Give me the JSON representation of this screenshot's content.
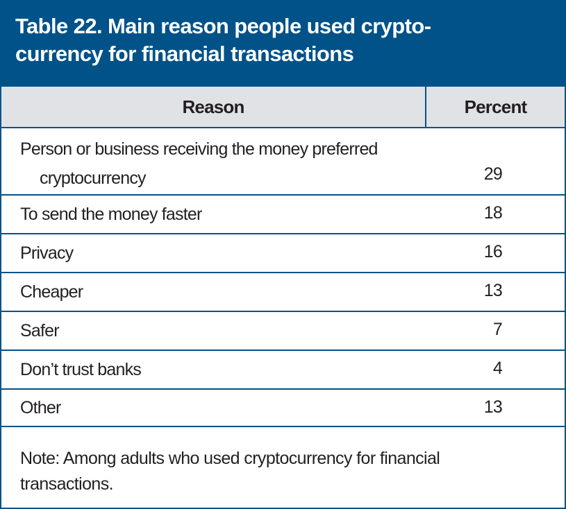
{
  "title": "Table 22. Main reason people used crypto-currency for financial transactions",
  "title_lines": [
    "Table 22. Main reason people used crypto-",
    "currency for financial transactions"
  ],
  "headers": {
    "reason": "Reason",
    "percent": "Percent"
  },
  "rows": [
    {
      "reason": "Person or business receiving the money preferred",
      "reason_cont": "cryptocurrency",
      "percent": "29"
    },
    {
      "reason": "To send the money faster",
      "percent": "18"
    },
    {
      "reason": "Privacy",
      "percent": "16"
    },
    {
      "reason": "Cheaper",
      "percent": "13"
    },
    {
      "reason": "Safer",
      "percent": "7"
    },
    {
      "reason": "Don’t trust banks",
      "percent": "4"
    },
    {
      "reason": "Other",
      "percent": "13"
    }
  ],
  "note": "Note: Among adults who used cryptocurrency for financial transactions.",
  "colors": {
    "accent": "#005288",
    "header_bg": "#e1e2e6"
  }
}
